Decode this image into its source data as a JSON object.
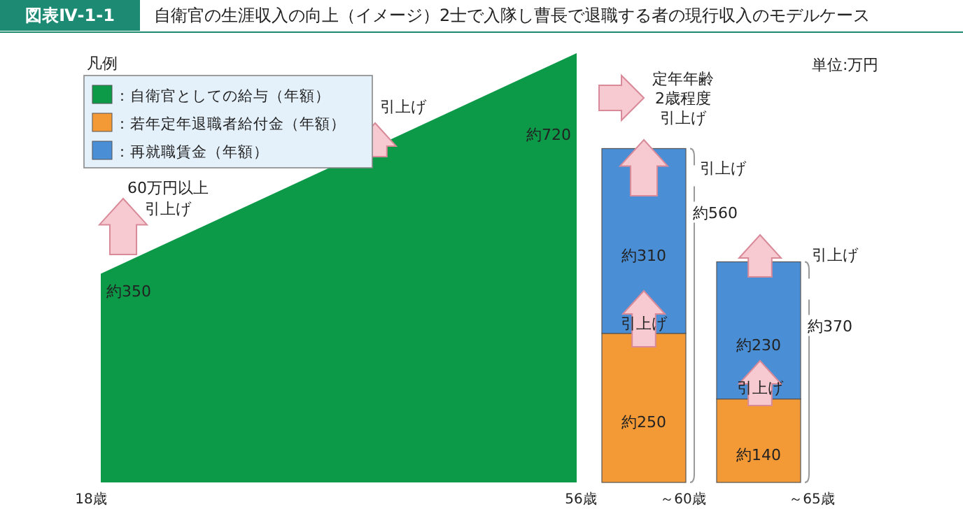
{
  "chart_data": {
    "type": "other",
    "title": "図表Ⅳ-1-1",
    "subtitle": "自衛官の生涯収入の向上（イメージ）2士で入隊し曹長で退職する者の現行収入のモデルケース",
    "legend_title": "凡例",
    "legend": "top left",
    "categories": [
      "18歳",
      "56歳",
      "～60歳",
      "～65歳"
    ],
    "series": [
      {
        "name": "：自衛官としての給与（年額）",
        "type": "area",
        "color": "#0c9a48",
        "values": [
          350,
          720,
          null,
          null
        ],
        "value_labels": [
          "約350",
          "約720",
          null,
          null
        ]
      },
      {
        "name": "：若年定年退職者給付金（年額）",
        "type": "bar",
        "color": "#f39a36",
        "values": [
          null,
          null,
          250,
          140
        ],
        "value_labels": [
          null,
          null,
          "約250",
          "約140"
        ]
      },
      {
        "name": "：再就職賃金（年額）",
        "type": "bar",
        "color": "#4a8ed6",
        "values": [
          null,
          null,
          310,
          230
        ],
        "value_labels": [
          null,
          null,
          "約310",
          "約230"
        ]
      }
    ],
    "totals": [
      null,
      null,
      "約560",
      "約370"
    ],
    "annotations": [
      "60万円以上",
      "引上げ",
      "引上げ",
      "定年年齢",
      "2歳程度",
      "引上げ",
      "引上げ",
      "引上げ",
      "引上げ",
      "引上げ",
      "単位:万円"
    ]
  }
}
